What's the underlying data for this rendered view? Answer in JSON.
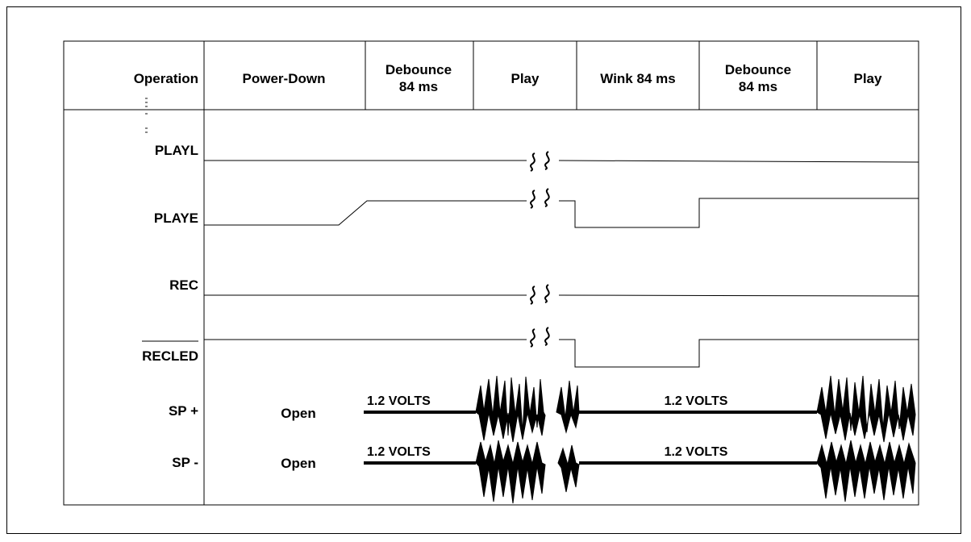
{
  "diagram": {
    "header": {
      "operation_label": "Operation",
      "phases": [
        {
          "line1": "Power-Down",
          "line2": ""
        },
        {
          "line1": "Debounce",
          "line2": "84 ms"
        },
        {
          "line1": "Play",
          "line2": ""
        },
        {
          "line1": "Wink 84 ms",
          "line2": ""
        },
        {
          "line1": "Debounce",
          "line2": "84 ms"
        },
        {
          "line1": "Play",
          "line2": ""
        }
      ]
    },
    "signals": {
      "playl": "PLAYL",
      "playe": "PLAYE",
      "rec": "REC",
      "recled": "RECLED",
      "sp_plus": "SP +",
      "sp_minus": "SP -"
    },
    "annotations": {
      "open_plus": "Open",
      "open_minus": "Open",
      "volts_plus_1": "1.2 VOLTS",
      "volts_plus_2": "1.2 VOLTS",
      "volts_minus_1": "1.2 VOLTS",
      "volts_minus_2": "1.2 VOLTS"
    }
  }
}
